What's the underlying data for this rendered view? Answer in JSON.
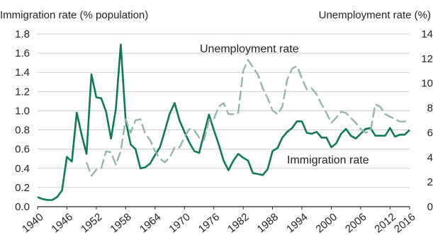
{
  "chart_data": {
    "type": "line",
    "left_axis": {
      "label": "Immigration rate (% population)",
      "ylim": [
        0,
        1.8
      ],
      "ticks": [
        "0.0",
        "0.2",
        "0.4",
        "0.6",
        "0.8",
        "1.0",
        "1.2",
        "1.4",
        "1.6",
        "1.8"
      ]
    },
    "right_axis": {
      "label": "Unemployment rate (%)",
      "ylim": [
        0,
        14
      ],
      "ticks": [
        "0",
        "2",
        "4",
        "6",
        "8",
        "10",
        "12",
        "14"
      ]
    },
    "x_axis": {
      "xlim": [
        1940,
        2016
      ],
      "ticks": [
        "1940",
        "1946",
        "1952",
        "1958",
        "1964",
        "1970",
        "1976",
        "1982",
        "1988",
        "1994",
        "2000",
        "2006",
        "2012",
        "2016"
      ]
    },
    "grid": "horizontal",
    "series": [
      {
        "name": "Immigration rate",
        "axis": "left",
        "color": "#0e7a55",
        "style": "solid",
        "x": [
          1940,
          1941,
          1942,
          1943,
          1944,
          1945,
          1946,
          1947,
          1948,
          1949,
          1950,
          1951,
          1952,
          1953,
          1954,
          1955,
          1956,
          1957,
          1958,
          1959,
          1960,
          1961,
          1962,
          1963,
          1964,
          1965,
          1966,
          1967,
          1968,
          1969,
          1970,
          1971,
          1972,
          1973,
          1974,
          1975,
          1976,
          1977,
          1978,
          1979,
          1980,
          1981,
          1982,
          1983,
          1984,
          1985,
          1986,
          1987,
          1988,
          1989,
          1990,
          1991,
          1992,
          1993,
          1994,
          1995,
          1996,
          1997,
          1998,
          1999,
          2000,
          2001,
          2002,
          2003,
          2004,
          2005,
          2006,
          2007,
          2008,
          2009,
          2010,
          2011,
          2012,
          2013,
          2014,
          2015,
          2016
        ],
        "y": [
          0.1,
          0.08,
          0.07,
          0.07,
          0.1,
          0.17,
          0.52,
          0.47,
          0.98,
          0.75,
          0.55,
          1.38,
          1.14,
          1.13,
          0.99,
          0.71,
          1.02,
          1.69,
          0.9,
          0.65,
          0.6,
          0.4,
          0.41,
          0.45,
          0.54,
          0.62,
          0.79,
          0.97,
          1.08,
          0.9,
          0.78,
          0.67,
          0.58,
          0.56,
          0.76,
          0.96,
          0.8,
          0.65,
          0.48,
          0.38,
          0.48,
          0.55,
          0.51,
          0.48,
          0.35,
          0.34,
          0.33,
          0.39,
          0.58,
          0.61,
          0.72,
          0.78,
          0.82,
          0.89,
          0.89,
          0.77,
          0.76,
          0.78,
          0.72,
          0.72,
          0.62,
          0.66,
          0.76,
          0.81,
          0.74,
          0.71,
          0.76,
          0.81,
          0.82,
          0.74,
          0.74,
          0.74,
          0.82,
          0.73,
          0.75,
          0.75,
          0.8
        ]
      },
      {
        "name": "Unemployment rate",
        "axis": "right",
        "color": "#95b5a8",
        "style": "dashed",
        "x": [
          1950,
          1951,
          1952,
          1953,
          1954,
          1955,
          1956,
          1957,
          1958,
          1959,
          1960,
          1961,
          1962,
          1963,
          1964,
          1965,
          1966,
          1967,
          1968,
          1969,
          1970,
          1971,
          1972,
          1973,
          1974,
          1975,
          1976,
          1977,
          1978,
          1979,
          1980,
          1981,
          1982,
          1983,
          1984,
          1985,
          1986,
          1987,
          1988,
          1989,
          1990,
          1991,
          1992,
          1993,
          1994,
          1995,
          1996,
          1997,
          1998,
          1999,
          2000,
          2001,
          2002,
          2003,
          2004,
          2005,
          2006,
          2007,
          2008,
          2009,
          2010,
          2011,
          2012,
          2013,
          2014,
          2015,
          2016
        ],
        "y": [
          3.6,
          2.5,
          3.0,
          3.1,
          4.5,
          4.4,
          3.4,
          4.5,
          7.1,
          6.0,
          7.0,
          7.1,
          5.9,
          5.4,
          4.5,
          3.9,
          3.6,
          4.0,
          4.8,
          4.8,
          5.6,
          6.3,
          6.2,
          5.6,
          5.4,
          7.0,
          7.1,
          8.1,
          8.4,
          7.5,
          7.5,
          7.6,
          11.0,
          11.9,
          11.3,
          10.7,
          9.6,
          8.8,
          7.8,
          7.5,
          8.1,
          10.3,
          11.2,
          11.4,
          10.4,
          9.5,
          9.6,
          9.1,
          8.3,
          7.6,
          6.8,
          7.2,
          7.7,
          7.6,
          7.2,
          6.8,
          6.3,
          6.0,
          6.1,
          8.3,
          8.1,
          7.5,
          7.3,
          7.1,
          6.9,
          6.9,
          7.0
        ]
      }
    ],
    "annotations": [
      "Unemployment rate",
      "Immigration rate"
    ]
  }
}
